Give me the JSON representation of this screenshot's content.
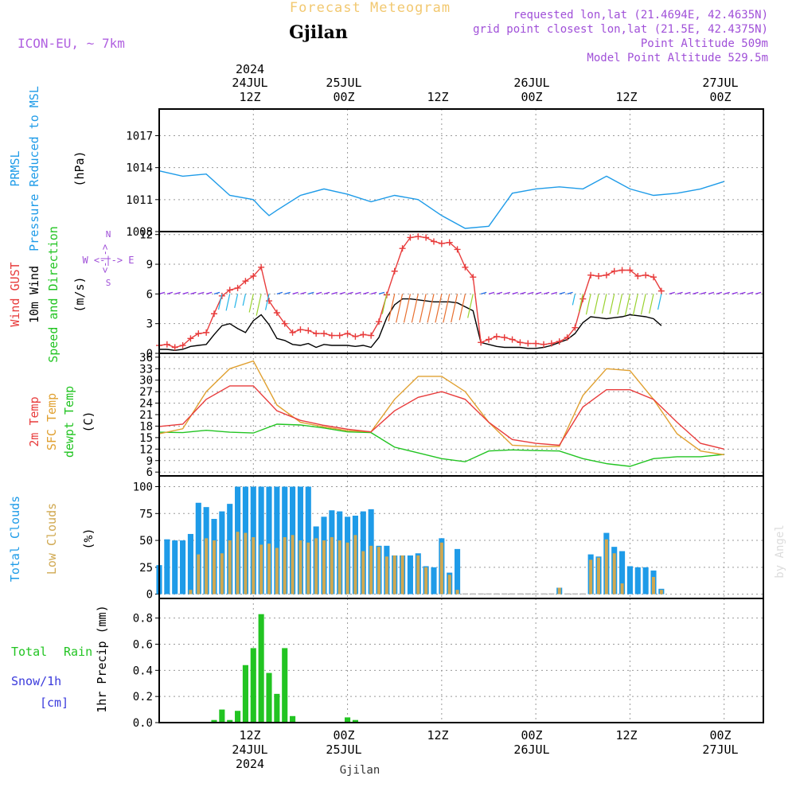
{
  "header": {
    "product_title": "Forecast Meteogram",
    "station": "Gjilan",
    "model": "ICON-EU, ~ 7km",
    "requested": "requested lon,lat (21.4694E, 42.4635N)",
    "grid_point": "grid point closest lon,lat (21.5E, 42.4375N)",
    "point_altitude": "Point Altitude 509m",
    "model_altitude": "Model Point Altitude 529.5m",
    "watermark": "by Angel",
    "bottom_station": "Gjilan"
  },
  "time_axis": {
    "top": [
      {
        "line1": "2024",
        "line2": "24JUL",
        "line3": "12Z"
      },
      {
        "line1": "",
        "line2": "25JUL",
        "line3": "00Z"
      },
      {
        "line1": "",
        "line2": "",
        "line3": "12Z"
      },
      {
        "line1": "",
        "line2": "26JUL",
        "line3": "00Z"
      },
      {
        "line1": "",
        "line2": "",
        "line3": "12Z"
      },
      {
        "line1": "",
        "line2": "27JUL",
        "line3": "00Z"
      }
    ],
    "bottom": [
      {
        "line1": "12Z",
        "line2": "24JUL",
        "line3": "2024"
      },
      {
        "line1": "00Z",
        "line2": "25JUL",
        "line3": ""
      },
      {
        "line1": "12Z",
        "line2": "",
        "line3": ""
      },
      {
        "line1": "00Z",
        "line2": "26JUL",
        "line3": ""
      },
      {
        "line1": "12Z",
        "line2": "",
        "line3": ""
      },
      {
        "line1": "00Z",
        "line2": "27JUL",
        "line3": ""
      }
    ]
  },
  "panels": {
    "pressure": {
      "label1": "PRMSL",
      "label2": "Pressure Reduced to MSL",
      "unit": "(hPa)"
    },
    "wind": {
      "label_gust": "Wind GUST",
      "label_wind1": "10m Wind",
      "label_wind2": "Speed and Direction",
      "unit": "(m/s)",
      "compass_n": "N",
      "compass_s": "S",
      "compass_we": "W <-|-> E",
      "compass_mid": "<-|->"
    },
    "temp": {
      "label_t2m": "2m Temp",
      "label_sfc": "SFC Temp",
      "label_dew": "dewpt Temp",
      "unit": "(C)"
    },
    "clouds": {
      "label_total": "Total Clouds",
      "label_low": "Low Clouds",
      "unit": "(%)"
    },
    "precip": {
      "label_total": "Total",
      "label_rain": "Rain",
      "label_snow": "Snow/1h",
      "label_cm": "[cm]",
      "unit": "1hr Precip (mm)"
    }
  },
  "colors": {
    "pressure": "#1e9be8",
    "gust": "#e83c3c",
    "wind": "#000000",
    "t2m": "#e83c3c",
    "sfc": "#e0a030",
    "dew": "#22c422",
    "total_clouds": "#1e9be8",
    "low_clouds": "#d0a850",
    "rain": "#22c422",
    "snow": "#3a3adc",
    "purple": "#a050d8",
    "model": "#b060e0"
  },
  "chart_data": [
    {
      "type": "line",
      "title": "PRMSL Pressure Reduced to MSL",
      "ylabel": "(hPa)",
      "ylim": [
        1008,
        1019.5
      ],
      "yticks": [
        1008,
        1011,
        1014,
        1017
      ],
      "x_hours": [
        0,
        3,
        6,
        9,
        12,
        13,
        14,
        15,
        18,
        21,
        24,
        27,
        30,
        33,
        36,
        39,
        42,
        45,
        48,
        51,
        54,
        57,
        60,
        63,
        66,
        69,
        72
      ],
      "series": [
        {
          "name": "PRMSL",
          "values": [
            1013.7,
            1013.2,
            1013.4,
            1011.4,
            1011,
            1010.2,
            1009.5,
            1010,
            1011.4,
            1012,
            1011.5,
            1010.8,
            1011.4,
            1011,
            1009.5,
            1008.3,
            1008.5,
            1011.6,
            1012,
            1012.2,
            1012,
            1013.2,
            1012,
            1011.4,
            1011.6,
            1012,
            1012.7
          ]
        }
      ]
    },
    {
      "type": "line",
      "title": "Wind GUST / 10m Wind Speed and Direction",
      "ylabel": "(m/s)",
      "ylim": [
        0,
        12.3
      ],
      "yticks": [
        0,
        3,
        6,
        9,
        12
      ],
      "x_hours": [
        0,
        1,
        2,
        3,
        4,
        5,
        6,
        7,
        8,
        9,
        10,
        11,
        12,
        13,
        14,
        15,
        16,
        17,
        18,
        19,
        20,
        21,
        22,
        23,
        24,
        25,
        26,
        27,
        28,
        29,
        30,
        31,
        32,
        33,
        34,
        35,
        36,
        37,
        38,
        39,
        40,
        41,
        42,
        43,
        44,
        45,
        46,
        47,
        48,
        49,
        50,
        51,
        52,
        53,
        54,
        55,
        56,
        57,
        58,
        59,
        60,
        61,
        62,
        63,
        64
      ],
      "series": [
        {
          "name": "Wind GUST",
          "values": [
            0.8,
            0.9,
            0.6,
            0.8,
            1.5,
            2,
            2.1,
            4,
            5.8,
            6.4,
            6.6,
            7.3,
            7.8,
            8.7,
            5.3,
            4.1,
            3,
            2.1,
            2.4,
            2.3,
            2,
            2,
            1.8,
            1.8,
            2,
            1.7,
            1.9,
            1.8,
            3.2,
            5.9,
            8.3,
            10.6,
            11.7,
            11.8,
            11.7,
            11.3,
            11.1,
            11.2,
            10.5,
            8.7,
            7.7,
            1.1,
            1.4,
            1.7,
            1.6,
            1.4,
            1.1,
            1,
            1,
            0.9,
            1,
            1.2,
            1.6,
            2.6,
            5.5,
            7.9,
            7.8,
            7.9,
            8.3,
            8.4,
            8.4,
            7.8,
            7.9,
            7.7,
            6.3
          ]
        },
        {
          "name": "10m Wind",
          "values": [
            0.4,
            0.4,
            0.3,
            0.4,
            0.7,
            0.8,
            0.9,
            1.9,
            2.8,
            3,
            2.5,
            2.1,
            3.3,
            3.9,
            2.9,
            1.5,
            1.3,
            0.9,
            0.8,
            1,
            0.6,
            0.9,
            0.8,
            0.8,
            0.8,
            0.7,
            0.8,
            0.6,
            1.6,
            3.6,
            4.9,
            5.5,
            5.5,
            5.4,
            5.3,
            5.2,
            5.2,
            5.2,
            5.1,
            4.7,
            4.3,
            1.1,
            0.9,
            0.7,
            0.6,
            0.6,
            0.6,
            0.5,
            0.5,
            0.6,
            0.8,
            1.1,
            1.4,
            2,
            3.1,
            3.7,
            3.6,
            3.5,
            3.6,
            3.7,
            3.9,
            3.8,
            3.7,
            3.5,
            2.8
          ]
        }
      ]
    },
    {
      "type": "line",
      "title": "2m Temp / SFC Temp / dewpt Temp",
      "ylabel": "(C)",
      "ylim": [
        5,
        37
      ],
      "yticks": [
        6,
        9,
        12,
        15,
        18,
        21,
        24,
        27,
        30,
        33,
        36
      ],
      "x_hours": [
        0,
        3,
        6,
        9,
        12,
        15,
        18,
        21,
        24,
        27,
        30,
        33,
        36,
        39,
        42,
        45,
        48,
        51,
        54,
        57,
        60,
        63,
        66,
        69,
        72
      ],
      "series": [
        {
          "name": "2m Temp",
          "values": [
            17.9,
            18.5,
            25,
            28.5,
            28.5,
            22,
            19.5,
            18.2,
            17.2,
            16.5,
            22,
            25.5,
            27,
            25,
            19,
            14.5,
            13.5,
            13,
            23,
            27.5,
            27.5,
            25,
            19,
            13.5,
            12
          ]
        },
        {
          "name": "SFC Temp",
          "values": [
            16,
            17.3,
            27,
            33,
            35,
            23.5,
            19,
            17.8,
            16.8,
            16.5,
            25,
            31,
            31,
            27,
            19,
            13,
            12.7,
            12.7,
            26,
            33,
            32.5,
            25,
            16,
            11.5,
            10.5
          ]
        },
        {
          "name": "dewpt Temp",
          "values": [
            16.4,
            16.3,
            16.9,
            16.4,
            16.2,
            18.5,
            18.3,
            17.5,
            16.5,
            16.3,
            12.5,
            11,
            9.5,
            8.7,
            11.5,
            11.8,
            11.6,
            11.5,
            9.5,
            8.2,
            7.5,
            9.5,
            10,
            10,
            10.6
          ]
        }
      ]
    },
    {
      "type": "bar",
      "title": "Total Clouds / Low Clouds",
      "ylabel": "(%)",
      "ylim": [
        -4,
        110
      ],
      "yticks": [
        0,
        25,
        50,
        75,
        100
      ],
      "x_hours": [
        0,
        1,
        2,
        3,
        4,
        5,
        6,
        7,
        8,
        9,
        10,
        11,
        12,
        13,
        14,
        15,
        16,
        17,
        18,
        19,
        20,
        21,
        22,
        23,
        24,
        25,
        26,
        27,
        28,
        29,
        30,
        31,
        32,
        33,
        34,
        35,
        36,
        37,
        38,
        39,
        40,
        41,
        42,
        43,
        44,
        45,
        46,
        47,
        48,
        49,
        50,
        51,
        52,
        53,
        54,
        55,
        56,
        57,
        58,
        59,
        60,
        61,
        62,
        63,
        64
      ],
      "series": [
        {
          "name": "Total Clouds",
          "values": [
            27,
            51,
            50,
            50,
            56,
            85,
            81,
            70,
            77,
            84,
            100,
            100,
            100,
            100,
            100,
            100,
            100,
            100,
            100,
            100,
            63,
            72,
            78,
            77,
            72,
            73,
            77,
            79,
            45,
            45,
            36,
            36,
            36,
            38,
            26,
            25,
            52,
            20,
            42,
            0,
            0,
            0,
            0,
            0,
            0,
            0,
            0,
            0,
            0,
            0,
            0,
            6,
            0,
            0,
            0,
            37,
            35,
            57,
            44,
            40,
            26,
            25,
            25,
            22,
            5
          ]
        },
        {
          "name": "Low Clouds",
          "values": [
            0,
            0,
            0,
            0,
            4,
            37,
            52,
            50,
            38,
            50,
            58,
            57,
            53,
            46,
            47,
            43,
            53,
            55,
            50,
            48,
            52,
            50,
            53,
            50,
            48,
            55,
            40,
            45,
            44,
            35,
            36,
            36,
            0,
            36,
            25,
            0,
            48,
            18,
            4,
            0,
            0,
            0,
            0,
            0,
            0,
            0,
            0,
            0,
            0,
            0,
            0,
            6,
            0,
            0,
            0,
            32,
            34,
            51,
            38,
            10,
            0,
            0,
            0,
            16,
            4
          ]
        }
      ]
    },
    {
      "type": "bar",
      "title": "1hr Precip",
      "ylabel": "1hr Precip (mm)",
      "ylim": [
        0,
        0.95
      ],
      "yticks": [
        0,
        0.2,
        0.4,
        0.6,
        0.8
      ],
      "x_hours": [
        7,
        8,
        9,
        10,
        11,
        12,
        13,
        14,
        15,
        16,
        17,
        24,
        25
      ],
      "series": [
        {
          "name": "Total Rain",
          "values": [
            0.02,
            0.1,
            0.02,
            0.09,
            0.44,
            0.57,
            0.83,
            0.38,
            0.22,
            0.57,
            0.05,
            0.04,
            0.02
          ]
        }
      ]
    }
  ]
}
